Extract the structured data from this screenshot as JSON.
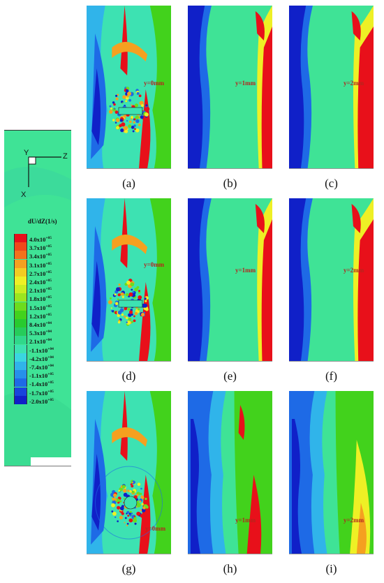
{
  "legend": {
    "title": "dU/dZ(1/s)",
    "axis_x": "X",
    "axis_y": "Y",
    "axis_z": "Z",
    "levels": [
      {
        "label": "4.0x10+05",
        "mant": "4.0",
        "exp": "+05",
        "color": "#e8101a"
      },
      {
        "label": "3.7x10+05",
        "mant": "3.7",
        "exp": "+05",
        "color": "#f0481a"
      },
      {
        "label": "3.4x10+05",
        "mant": "3.4",
        "exp": "+05",
        "color": "#f3721c"
      },
      {
        "label": "3.1x10+05",
        "mant": "3.1",
        "exp": "+05",
        "color": "#f5a020"
      },
      {
        "label": "2.7x10+05",
        "mant": "2.7",
        "exp": "+05",
        "color": "#f3cc22"
      },
      {
        "label": "2.4x10+05",
        "mant": "2.4",
        "exp": "+05",
        "color": "#eef025"
      },
      {
        "label": "2.1x10+05",
        "mant": "2.1",
        "exp": "+05",
        "color": "#c8ee22"
      },
      {
        "label": "1.8x10+05",
        "mant": "1.8",
        "exp": "+05",
        "color": "#9ae620"
      },
      {
        "label": "1.5x10+05",
        "mant": "1.5",
        "exp": "+05",
        "color": "#6cdc1e"
      },
      {
        "label": "1.2x10+05",
        "mant": "1.2",
        "exp": "+05",
        "color": "#42d21c"
      },
      {
        "label": "8.4x10+04",
        "mant": "8.4",
        "exp": "+04",
        "color": "#28ca2e"
      },
      {
        "label": "5.3x10+04",
        "mant": "5.3",
        "exp": "+04",
        "color": "#26cc5a"
      },
      {
        "label": "2.1x10+04",
        "mant": "2.1",
        "exp": "+04",
        "color": "#30d88a"
      },
      {
        "label": "-1.1x10+04",
        "mant": "-1.1",
        "exp": "+04",
        "color": "#3de2b2"
      },
      {
        "label": "-4.2x10+04",
        "mant": "-4.2",
        "exp": "+04",
        "color": "#3ad6e0"
      },
      {
        "label": "-7.4x10+04",
        "mant": "-7.4",
        "exp": "+04",
        "color": "#30b4ea"
      },
      {
        "label": "-1.1x10+05",
        "mant": "-1.1",
        "exp": "+05",
        "color": "#2690ea"
      },
      {
        "label": "-1.4x10+05",
        "mant": "-1.4",
        "exp": "+05",
        "color": "#1e6ae6"
      },
      {
        "label": "-1.7x10+05",
        "mant": "-1.7",
        "exp": "+05",
        "color": "#1844dc"
      },
      {
        "label": "-2.0x10+05",
        "mant": "-2.0",
        "exp": "+05",
        "color": "#1020c8"
      }
    ]
  },
  "panels": [
    {
      "id": "a",
      "caption": "(a)",
      "ylabel": "y=0mm"
    },
    {
      "id": "b",
      "caption": "(b)",
      "ylabel": "y=1mm"
    },
    {
      "id": "c",
      "caption": "(c)",
      "ylabel": "y=2mm"
    },
    {
      "id": "d",
      "caption": "(d)",
      "ylabel": "y=0mm"
    },
    {
      "id": "e",
      "caption": "(e)",
      "ylabel": "y=1mm"
    },
    {
      "id": "f",
      "caption": "(f)",
      "ylabel": "y=2mm"
    },
    {
      "id": "g",
      "caption": "(g)",
      "ylabel": "y=0mm"
    },
    {
      "id": "h",
      "caption": "(h)",
      "ylabel": "y=1mm"
    },
    {
      "id": "i",
      "caption": "(i)",
      "ylabel": "y=2mm"
    }
  ]
}
